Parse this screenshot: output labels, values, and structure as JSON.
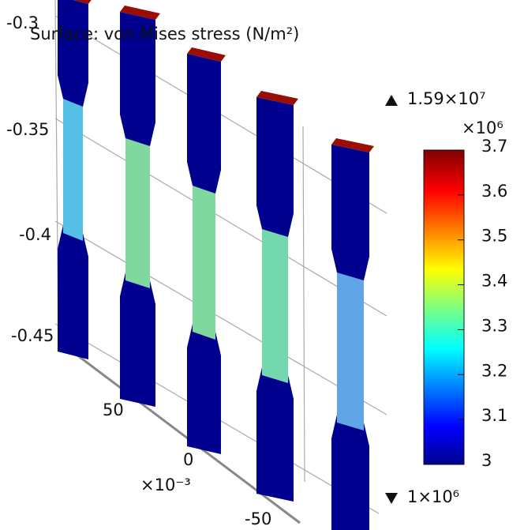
{
  "title": "Surface: von Mises stress (N/m²)",
  "colorbar": {
    "max_label": "1.59×10⁷",
    "min_label": "1×10⁶",
    "scale_label": "×10⁶",
    "range": [
      3,
      3.7
    ],
    "ticks": [
      3,
      3.1,
      3.2,
      3.3,
      3.4,
      3.5,
      3.6,
      3.7
    ]
  },
  "z_axis": {
    "tick_labels": [
      "-0.3",
      "-0.35",
      "-0.4",
      "-0.45"
    ]
  },
  "x_axis": {
    "tick_labels": [
      "50",
      "0",
      "-50"
    ],
    "scale_label": "×10⁻³"
  }
}
